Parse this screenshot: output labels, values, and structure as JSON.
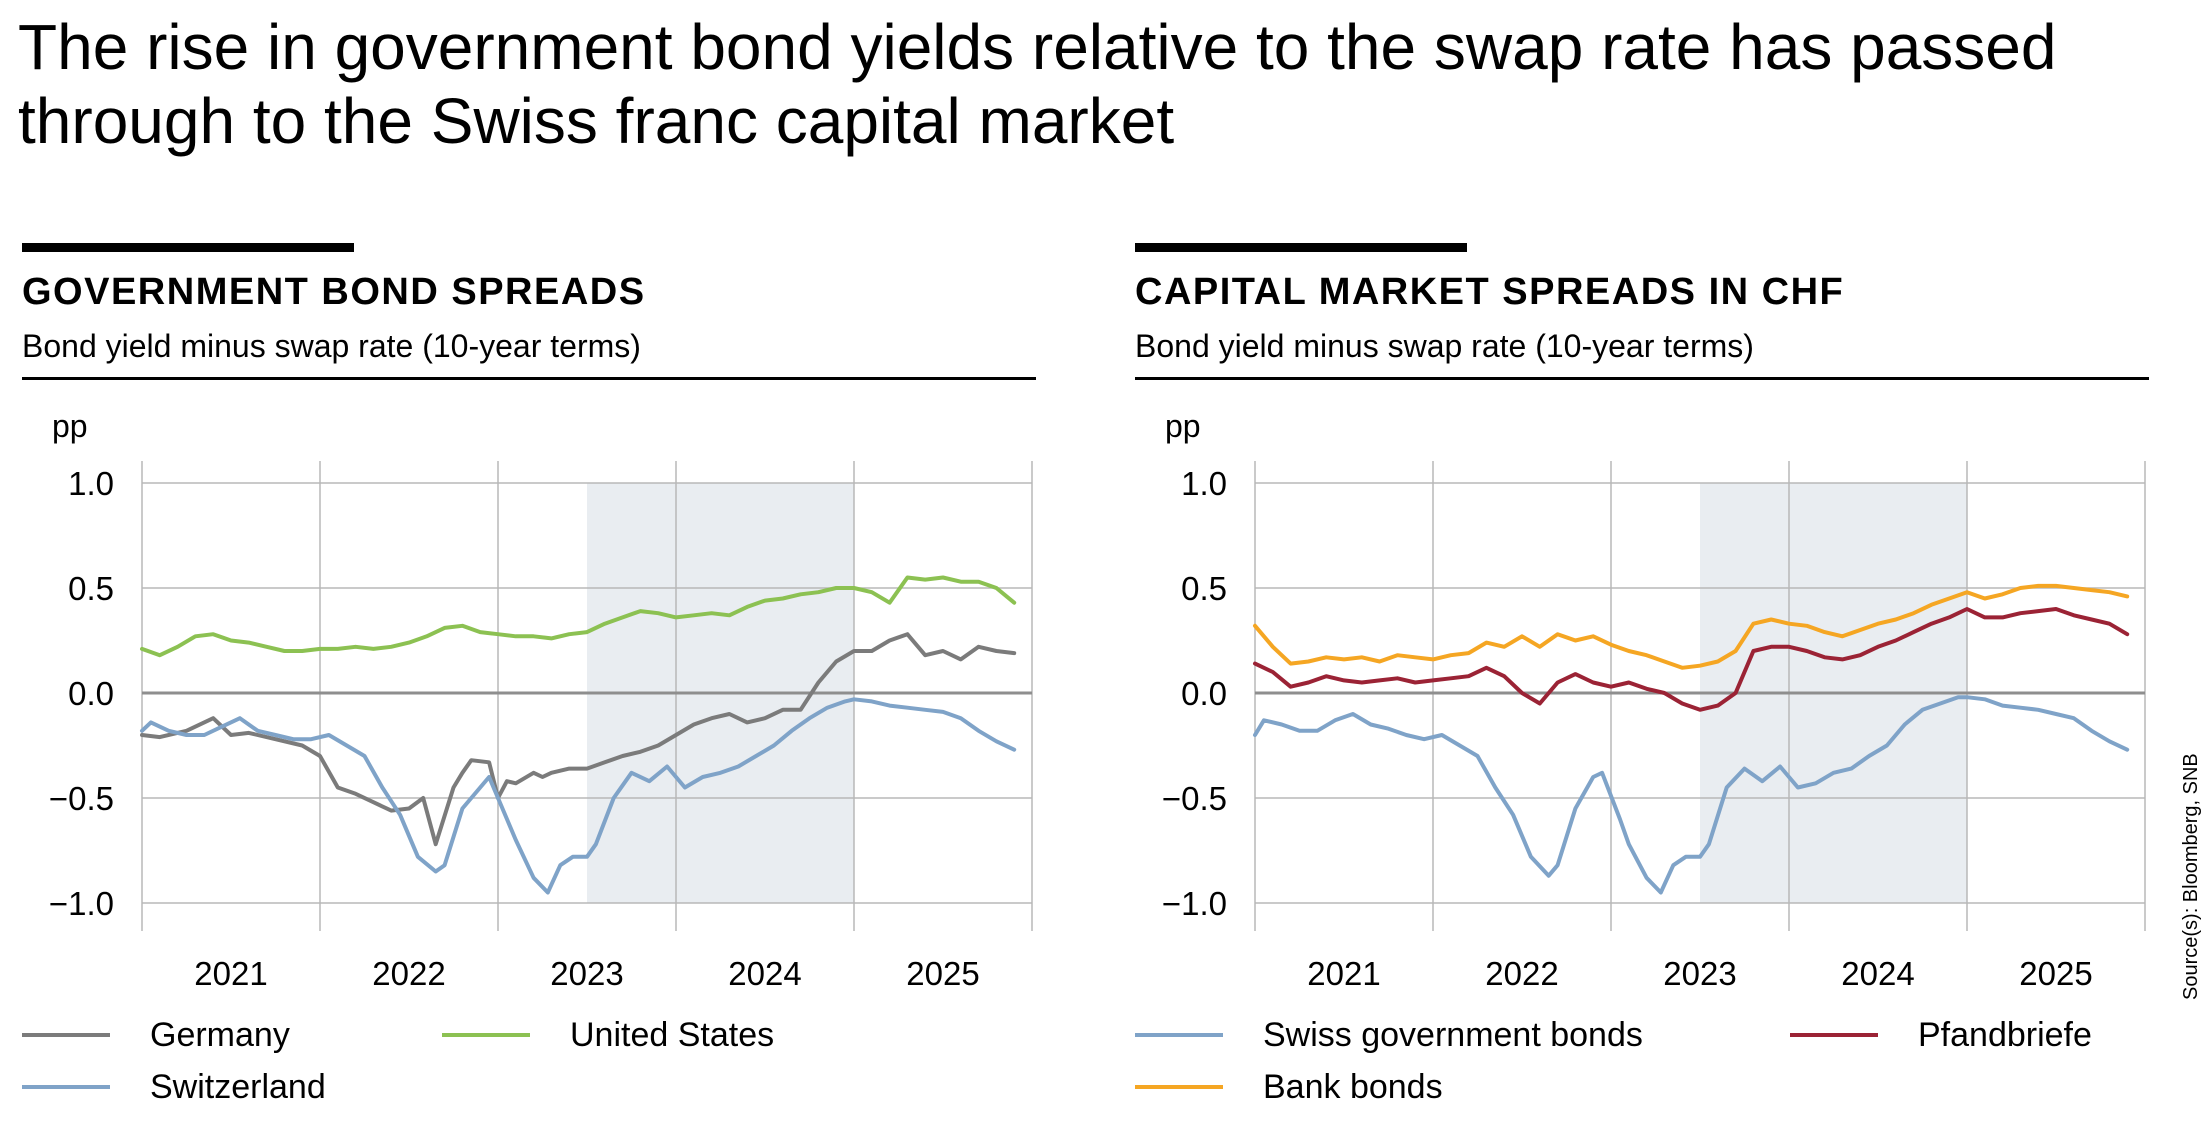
{
  "headline": "The rise in government bond yields relative to the swap rate has passed through to the Swiss franc capital market",
  "source": "Source(s): Bloomberg, SNB",
  "chart_data": [
    {
      "type": "line",
      "title": "GOVERNMENT BOND SPREADS",
      "subtitle": "Bond yield minus swap rate (10-year terms)",
      "ylabel": "pp",
      "ylim": [
        -1.0,
        1.0
      ],
      "yticks": [
        1.0,
        0.5,
        0.0,
        -0.5,
        -1.0
      ],
      "ytick_labels": [
        "1.0",
        "0.5",
        "0.0",
        "−0.5",
        "−1.0"
      ],
      "xlim": [
        2020.5,
        2025.5
      ],
      "xticks": [
        2021,
        2022,
        2023,
        2024,
        2025
      ],
      "xtick_labels": [
        "2021",
        "2022",
        "2023",
        "2024",
        "2025"
      ],
      "xgrid": [
        2020.5,
        2021.5,
        2022.5,
        2023.5,
        2024.5,
        2025.5
      ],
      "shaded_region": [
        2023.0,
        2024.5
      ],
      "zero_line": true,
      "series": [
        {
          "name": "Germany",
          "color": "#7b7b7b",
          "x": [
            2020.5,
            2020.6,
            2020.75,
            2020.9,
            2021.0,
            2021.1,
            2021.25,
            2021.4,
            2021.5,
            2021.6,
            2021.7,
            2021.8,
            2021.9,
            2022.0,
            2022.08,
            2022.15,
            2022.25,
            2022.3,
            2022.35,
            2022.45,
            2022.5,
            2022.55,
            2022.6,
            2022.7,
            2022.75,
            2022.8,
            2022.9,
            2023.0,
            2023.1,
            2023.2,
            2023.3,
            2023.4,
            2023.5,
            2023.6,
            2023.7,
            2023.8,
            2023.9,
            2024.0,
            2024.1,
            2024.2,
            2024.3,
            2024.4,
            2024.5,
            2024.6,
            2024.7,
            2024.8,
            2024.9,
            2025.0,
            2025.1,
            2025.2,
            2025.3,
            2025.4
          ],
          "y": [
            -0.2,
            -0.21,
            -0.18,
            -0.12,
            -0.2,
            -0.19,
            -0.22,
            -0.25,
            -0.3,
            -0.45,
            -0.48,
            -0.52,
            -0.56,
            -0.55,
            -0.5,
            -0.72,
            -0.45,
            -0.38,
            -0.32,
            -0.33,
            -0.5,
            -0.42,
            -0.43,
            -0.38,
            -0.4,
            -0.38,
            -0.36,
            -0.36,
            -0.33,
            -0.3,
            -0.28,
            -0.25,
            -0.2,
            -0.15,
            -0.12,
            -0.1,
            -0.14,
            -0.12,
            -0.08,
            -0.08,
            0.05,
            0.15,
            0.2,
            0.2,
            0.25,
            0.28,
            0.18,
            0.2,
            0.16,
            0.22,
            0.2,
            0.19
          ]
        },
        {
          "name": "Switzerland",
          "color": "#7fa3c8",
          "x": [
            2020.5,
            2020.55,
            2020.65,
            2020.75,
            2020.85,
            2020.95,
            2021.05,
            2021.15,
            2021.25,
            2021.35,
            2021.45,
            2021.55,
            2021.65,
            2021.75,
            2021.85,
            2021.95,
            2022.05,
            2022.15,
            2022.2,
            2022.3,
            2022.4,
            2022.45,
            2022.55,
            2022.6,
            2022.7,
            2022.78,
            2022.85,
            2022.92,
            2023.0,
            2023.05,
            2023.15,
            2023.25,
            2023.35,
            2023.45,
            2023.55,
            2023.65,
            2023.75,
            2023.85,
            2023.95,
            2024.05,
            2024.15,
            2024.25,
            2024.35,
            2024.45,
            2024.5,
            2024.6,
            2024.7,
            2024.8,
            2024.9,
            2025.0,
            2025.1,
            2025.2,
            2025.3,
            2025.4
          ],
          "y": [
            -0.18,
            -0.14,
            -0.18,
            -0.2,
            -0.2,
            -0.16,
            -0.12,
            -0.18,
            -0.2,
            -0.22,
            -0.22,
            -0.2,
            -0.25,
            -0.3,
            -0.45,
            -0.58,
            -0.78,
            -0.85,
            -0.82,
            -0.55,
            -0.45,
            -0.4,
            -0.6,
            -0.7,
            -0.88,
            -0.95,
            -0.82,
            -0.78,
            -0.78,
            -0.72,
            -0.5,
            -0.38,
            -0.42,
            -0.35,
            -0.45,
            -0.4,
            -0.38,
            -0.35,
            -0.3,
            -0.25,
            -0.18,
            -0.12,
            -0.07,
            -0.04,
            -0.03,
            -0.04,
            -0.06,
            -0.07,
            -0.08,
            -0.09,
            -0.12,
            -0.18,
            -0.23,
            -0.27
          ]
        },
        {
          "name": "United States",
          "color": "#8cc152",
          "x": [
            2020.5,
            2020.6,
            2020.7,
            2020.8,
            2020.9,
            2021.0,
            2021.1,
            2021.2,
            2021.3,
            2021.4,
            2021.5,
            2021.6,
            2021.7,
            2021.8,
            2021.9,
            2022.0,
            2022.1,
            2022.2,
            2022.3,
            2022.4,
            2022.5,
            2022.6,
            2022.7,
            2022.8,
            2022.9,
            2023.0,
            2023.1,
            2023.2,
            2023.3,
            2023.4,
            2023.5,
            2023.6,
            2023.7,
            2023.8,
            2023.9,
            2024.0,
            2024.1,
            2024.2,
            2024.3,
            2024.4,
            2024.5,
            2024.6,
            2024.7,
            2024.8,
            2024.9,
            2025.0,
            2025.1,
            2025.2,
            2025.3,
            2025.4
          ],
          "y": [
            0.21,
            0.18,
            0.22,
            0.27,
            0.28,
            0.25,
            0.24,
            0.22,
            0.2,
            0.2,
            0.21,
            0.21,
            0.22,
            0.21,
            0.22,
            0.24,
            0.27,
            0.31,
            0.32,
            0.29,
            0.28,
            0.27,
            0.27,
            0.26,
            0.28,
            0.29,
            0.33,
            0.36,
            0.39,
            0.38,
            0.36,
            0.37,
            0.38,
            0.37,
            0.41,
            0.44,
            0.45,
            0.47,
            0.48,
            0.5,
            0.5,
            0.48,
            0.43,
            0.55,
            0.54,
            0.55,
            0.53,
            0.53,
            0.5,
            0.43
          ]
        }
      ]
    },
    {
      "type": "line",
      "title": "CAPITAL MARKET SPREADS IN CHF",
      "subtitle": "Bond yield minus swap rate (10-year terms)",
      "ylabel": "pp",
      "ylim": [
        -1.0,
        1.0
      ],
      "yticks": [
        1.0,
        0.5,
        0.0,
        -0.5,
        -1.0
      ],
      "ytick_labels": [
        "1.0",
        "0.5",
        "0.0",
        "−0.5",
        "−1.0"
      ],
      "xlim": [
        2020.5,
        2025.5
      ],
      "xticks": [
        2021,
        2022,
        2023,
        2024,
        2025
      ],
      "xtick_labels": [
        "2021",
        "2022",
        "2023",
        "2024",
        "2025"
      ],
      "xgrid": [
        2020.5,
        2021.5,
        2022.5,
        2023.5,
        2024.5,
        2025.5
      ],
      "shaded_region": [
        2023.0,
        2024.5
      ],
      "zero_line": true,
      "series": [
        {
          "name": "Swiss government bonds",
          "color": "#7fa3c8",
          "x": [
            2020.5,
            2020.55,
            2020.65,
            2020.75,
            2020.85,
            2020.95,
            2021.05,
            2021.15,
            2021.25,
            2021.35,
            2021.45,
            2021.55,
            2021.65,
            2021.75,
            2021.85,
            2021.95,
            2022.05,
            2022.15,
            2022.2,
            2022.3,
            2022.4,
            2022.45,
            2022.55,
            2022.6,
            2022.7,
            2022.78,
            2022.85,
            2022.92,
            2023.0,
            2023.05,
            2023.15,
            2023.25,
            2023.35,
            2023.45,
            2023.55,
            2023.65,
            2023.75,
            2023.85,
            2023.95,
            2024.05,
            2024.15,
            2024.25,
            2024.35,
            2024.45,
            2024.5,
            2024.6,
            2024.7,
            2024.8,
            2024.9,
            2025.0,
            2025.1,
            2025.2,
            2025.3,
            2025.4
          ],
          "y": [
            -0.2,
            -0.13,
            -0.15,
            -0.18,
            -0.18,
            -0.13,
            -0.1,
            -0.15,
            -0.17,
            -0.2,
            -0.22,
            -0.2,
            -0.25,
            -0.3,
            -0.45,
            -0.58,
            -0.78,
            -0.87,
            -0.82,
            -0.55,
            -0.4,
            -0.38,
            -0.6,
            -0.72,
            -0.88,
            -0.95,
            -0.82,
            -0.78,
            -0.78,
            -0.72,
            -0.45,
            -0.36,
            -0.42,
            -0.35,
            -0.45,
            -0.43,
            -0.38,
            -0.36,
            -0.3,
            -0.25,
            -0.15,
            -0.08,
            -0.05,
            -0.02,
            -0.02,
            -0.03,
            -0.06,
            -0.07,
            -0.08,
            -0.1,
            -0.12,
            -0.18,
            -0.23,
            -0.27
          ]
        },
        {
          "name": "Pfandbriefe",
          "color": "#9b2335",
          "x": [
            2020.5,
            2020.6,
            2020.7,
            2020.8,
            2020.9,
            2021.0,
            2021.1,
            2021.2,
            2021.3,
            2021.4,
            2021.5,
            2021.6,
            2021.7,
            2021.8,
            2021.9,
            2022.0,
            2022.1,
            2022.2,
            2022.3,
            2022.4,
            2022.5,
            2022.6,
            2022.7,
            2022.8,
            2022.9,
            2023.0,
            2023.1,
            2023.2,
            2023.3,
            2023.4,
            2023.5,
            2023.6,
            2023.7,
            2023.8,
            2023.9,
            2024.0,
            2024.1,
            2024.2,
            2024.3,
            2024.4,
            2024.5,
            2024.6,
            2024.7,
            2024.8,
            2024.9,
            2025.0,
            2025.1,
            2025.2,
            2025.3,
            2025.4
          ],
          "y": [
            0.14,
            0.1,
            0.03,
            0.05,
            0.08,
            0.06,
            0.05,
            0.06,
            0.07,
            0.05,
            0.06,
            0.07,
            0.08,
            0.12,
            0.08,
            0.0,
            -0.05,
            0.05,
            0.09,
            0.05,
            0.03,
            0.05,
            0.02,
            0.0,
            -0.05,
            -0.08,
            -0.06,
            0.0,
            0.2,
            0.22,
            0.22,
            0.2,
            0.17,
            0.16,
            0.18,
            0.22,
            0.25,
            0.29,
            0.33,
            0.36,
            0.4,
            0.36,
            0.36,
            0.38,
            0.39,
            0.4,
            0.37,
            0.35,
            0.33,
            0.28
          ]
        },
        {
          "name": "Bank bonds",
          "color": "#f5a623",
          "x": [
            2020.5,
            2020.6,
            2020.7,
            2020.8,
            2020.9,
            2021.0,
            2021.1,
            2021.2,
            2021.3,
            2021.4,
            2021.5,
            2021.6,
            2021.7,
            2021.8,
            2021.9,
            2022.0,
            2022.1,
            2022.2,
            2022.3,
            2022.4,
            2022.5,
            2022.6,
            2022.7,
            2022.8,
            2022.9,
            2023.0,
            2023.1,
            2023.2,
            2023.3,
            2023.4,
            2023.5,
            2023.6,
            2023.7,
            2023.8,
            2023.9,
            2024.0,
            2024.1,
            2024.2,
            2024.3,
            2024.4,
            2024.5,
            2024.6,
            2024.7,
            2024.8,
            2024.9,
            2025.0,
            2025.1,
            2025.2,
            2025.3,
            2025.4
          ],
          "y": [
            0.32,
            0.22,
            0.14,
            0.15,
            0.17,
            0.16,
            0.17,
            0.15,
            0.18,
            0.17,
            0.16,
            0.18,
            0.19,
            0.24,
            0.22,
            0.27,
            0.22,
            0.28,
            0.25,
            0.27,
            0.23,
            0.2,
            0.18,
            0.15,
            0.12,
            0.13,
            0.15,
            0.2,
            0.33,
            0.35,
            0.33,
            0.32,
            0.29,
            0.27,
            0.3,
            0.33,
            0.35,
            0.38,
            0.42,
            0.45,
            0.48,
            0.45,
            0.47,
            0.5,
            0.51,
            0.51,
            0.5,
            0.49,
            0.48,
            0.46
          ]
        }
      ]
    }
  ],
  "legends": [
    {
      "items": [
        {
          "label": "Germany",
          "color": "#7b7b7b"
        },
        {
          "label": "Switzerland",
          "color": "#7fa3c8"
        },
        {
          "label": "United States",
          "color": "#8cc152"
        }
      ]
    },
    {
      "items": [
        {
          "label": "Swiss government bonds",
          "color": "#7fa3c8"
        },
        {
          "label": "Bank bonds",
          "color": "#f5a623"
        },
        {
          "label": "Pfandbriefe",
          "color": "#9b2335"
        }
      ]
    }
  ]
}
